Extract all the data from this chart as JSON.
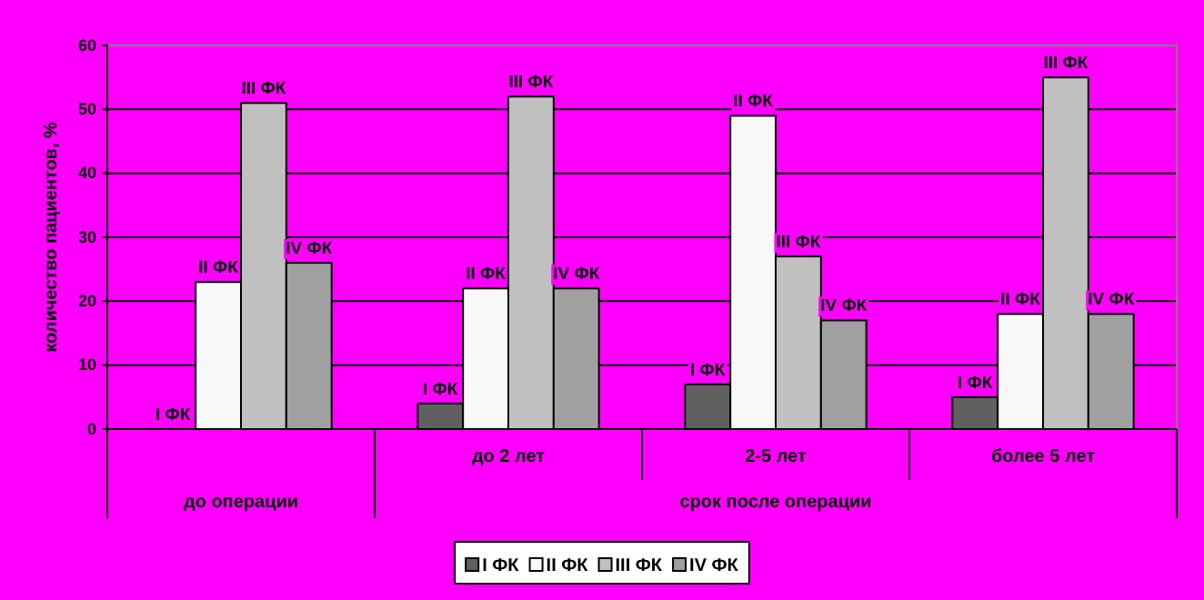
{
  "chart_data": {
    "type": "bar",
    "categories": [
      null,
      "до 2 лет",
      "2-5 лет",
      "более 5 лет"
    ],
    "ylabel": "количество пациентов, %",
    "ylim": [
      0,
      60
    ],
    "yticks": [
      0,
      10,
      20,
      30,
      40,
      50,
      60
    ],
    "grid": "y",
    "legend": "bottom",
    "annotations": [
      "до операции",
      "срок после операции"
    ],
    "series": [
      {
        "name": "I ФК",
        "color": "#606060",
        "values": [
          0,
          4,
          7,
          5
        ]
      },
      {
        "name": "II ФК",
        "color": "#f8f8f8",
        "values": [
          23,
          22,
          49,
          18
        ]
      },
      {
        "name": "III ФК",
        "color": "#c0c0c0",
        "values": [
          51,
          52,
          27,
          55
        ]
      },
      {
        "name": "IV ФК",
        "color": "#a0a0a0",
        "values": [
          26,
          22,
          17,
          18
        ]
      }
    ]
  }
}
